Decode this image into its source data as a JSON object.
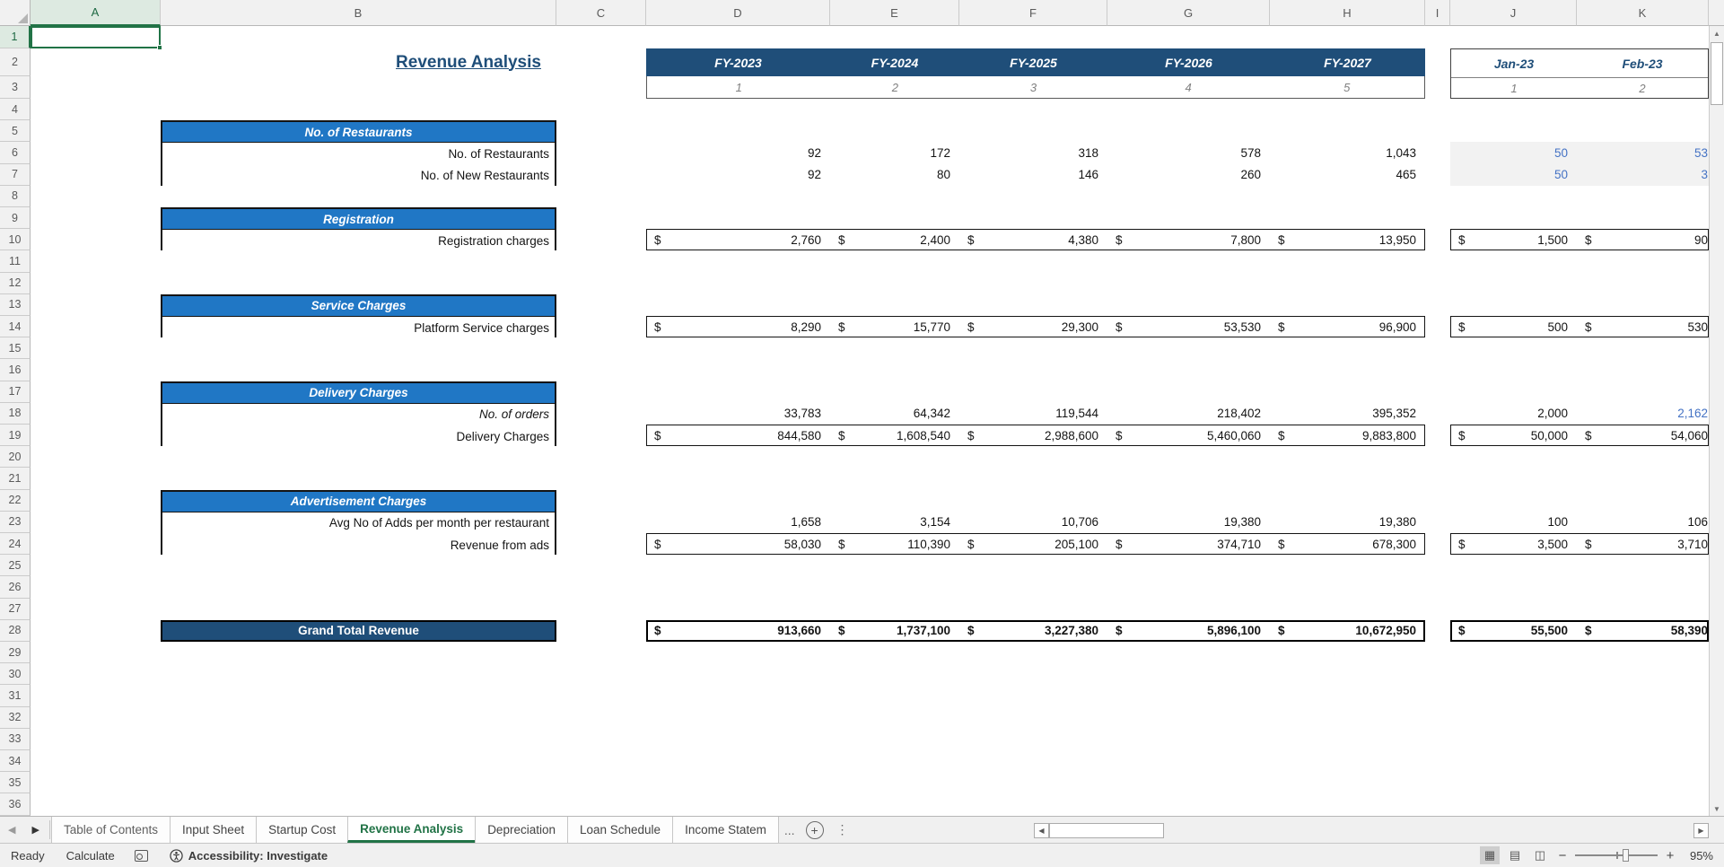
{
  "title": "Revenue Analysis",
  "grid": {
    "columns": [
      "A",
      "B",
      "C",
      "D",
      "E",
      "F",
      "G",
      "H",
      "I",
      "J",
      "K"
    ],
    "selected_column": "A",
    "selected_row": "1",
    "row_count": 36,
    "selected_cell": "A1"
  },
  "annual_header": {
    "labels": [
      "FY-2023",
      "FY-2024",
      "FY-2025",
      "FY-2026",
      "FY-2027"
    ],
    "indices": [
      "1",
      "2",
      "3",
      "4",
      "5"
    ]
  },
  "monthly_header": {
    "labels": [
      "Jan-23",
      "Feb-23"
    ],
    "indices": [
      "1",
      "2"
    ]
  },
  "sections": [
    {
      "name": "no-of-restaurants",
      "header": "No. of Restaurants",
      "header_row": 5,
      "rows": [
        {
          "row": 6,
          "label": "No. of Restaurants",
          "annual": [
            "92",
            "172",
            "318",
            "578",
            "1,043"
          ],
          "monthly": [
            "50",
            "53"
          ],
          "monthly_blue": [
            true,
            true
          ],
          "monthly_shaded": true
        },
        {
          "row": 7,
          "label": "No. of New Restaurants",
          "annual": [
            "92",
            "80",
            "146",
            "260",
            "465"
          ],
          "monthly": [
            "50",
            "3"
          ],
          "monthly_blue": [
            true,
            true
          ],
          "monthly_shaded": true
        }
      ]
    },
    {
      "name": "registration",
      "header": "Registration",
      "header_row": 9,
      "rows": [
        {
          "row": 10,
          "label": "Registration charges",
          "currency": true,
          "annual": [
            "2,760",
            "2,400",
            "4,380",
            "7,800",
            "13,950"
          ],
          "monthly": [
            "1,500",
            "90"
          ]
        }
      ]
    },
    {
      "name": "service-charges",
      "header": "Service Charges",
      "header_row": 13,
      "rows": [
        {
          "row": 14,
          "label": "Platform Service charges",
          "currency": true,
          "annual": [
            "8,290",
            "15,770",
            "29,300",
            "53,530",
            "96,900"
          ],
          "monthly": [
            "500",
            "530"
          ]
        }
      ]
    },
    {
      "name": "delivery-charges",
      "header": "Delivery Charges",
      "header_row": 17,
      "rows": [
        {
          "row": 18,
          "label": "No. of orders",
          "label_italic": true,
          "annual": [
            "33,783",
            "64,342",
            "119,544",
            "218,402",
            "395,352"
          ],
          "monthly": [
            "2,000",
            "2,162"
          ],
          "monthly_blue": [
            false,
            true
          ]
        },
        {
          "row": 19,
          "label": "Delivery Charges",
          "currency": true,
          "annual": [
            "844,580",
            "1,608,540",
            "2,988,600",
            "5,460,060",
            "9,883,800"
          ],
          "monthly": [
            "50,000",
            "54,060"
          ]
        }
      ]
    },
    {
      "name": "advertisement-charges",
      "header": "Advertisement Charges",
      "header_row": 22,
      "rows": [
        {
          "row": 23,
          "label": "Avg No of Adds per month per restaurant",
          "annual": [
            "1,658",
            "3,154",
            "10,706",
            "19,380",
            "19,380"
          ],
          "monthly": [
            "100",
            "106"
          ]
        },
        {
          "row": 24,
          "label": "Revenue from ads",
          "currency": true,
          "annual": [
            "58,030",
            "110,390",
            "205,100",
            "374,710",
            "678,300"
          ],
          "monthly": [
            "3,500",
            "3,710"
          ]
        }
      ]
    }
  ],
  "grand_total": {
    "row": 28,
    "label": "Grand Total Revenue",
    "currency": true,
    "bold": true,
    "annual": [
      "913,660",
      "1,737,100",
      "3,227,380",
      "5,896,100",
      "10,672,950"
    ],
    "monthly": [
      "55,500",
      "58,390"
    ]
  },
  "sheet_tabs": {
    "tabs": [
      "Table of Contents",
      "Input Sheet",
      "Startup Cost",
      "Revenue Analysis",
      "Depreciation",
      "Loan Schedule",
      "Income Statem"
    ],
    "active_tab": "Revenue Analysis",
    "truncated_last": true,
    "ellipsis": "..."
  },
  "status_bar": {
    "mode": "Ready",
    "calculate": "Calculate",
    "accessibility": "Accessibility: Investigate",
    "zoom": "95%"
  },
  "colors": {
    "dark_navy": "#1F4E79",
    "section_blue": "#2077C5",
    "value_blue": "#4472C4",
    "selection_green": "#217346",
    "monthly_shade": "#F2F2F2"
  }
}
